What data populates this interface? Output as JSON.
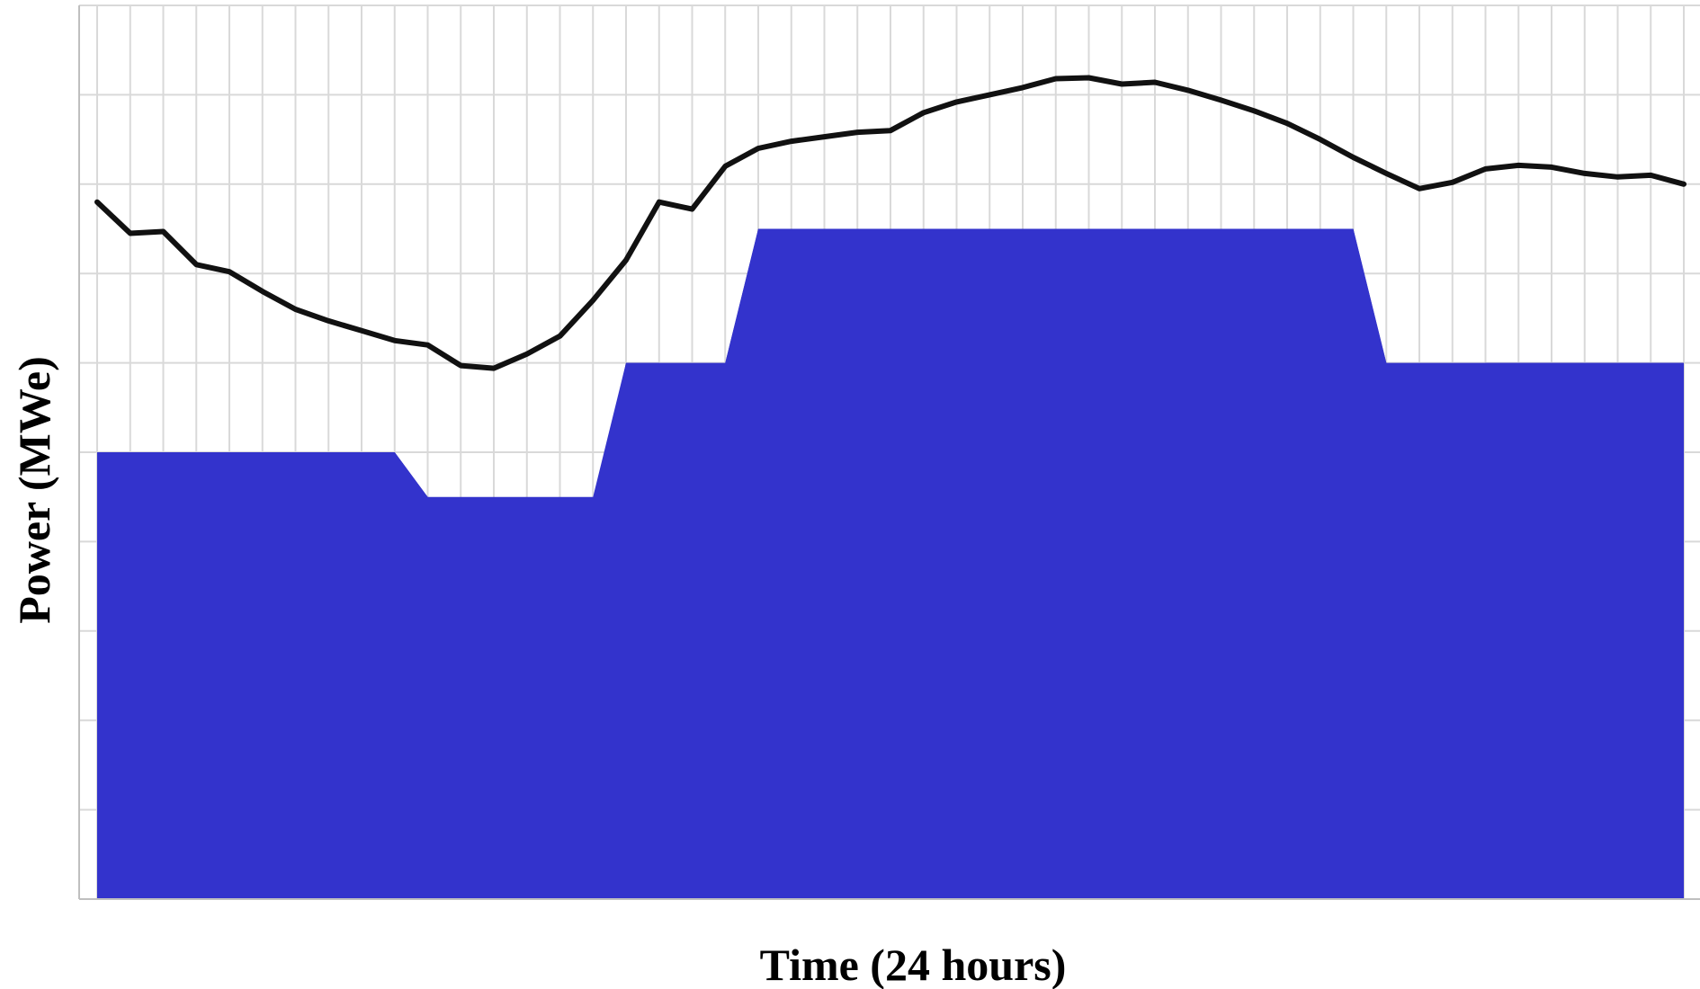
{
  "chart_data": {
    "type": "area",
    "title": "",
    "xlabel": "Time (24 hours)",
    "ylabel": "Power (MWe)",
    "xlim": [
      0,
      48
    ],
    "ylim": [
      0,
      10
    ],
    "grid": true,
    "colors": {
      "area": "#3333cc",
      "area_dip": "#2a2aa8",
      "line": "#111111",
      "grid": "#d9d9d9"
    },
    "area_series": {
      "x": [
        0,
        9,
        10,
        15,
        16,
        19,
        20,
        38,
        39,
        48
      ],
      "values": [
        5,
        5,
        4.5,
        4.5,
        6,
        6,
        7.5,
        7.5,
        6,
        6
      ]
    },
    "dip_series": {
      "x": [
        0,
        1,
        2,
        9,
        10,
        11,
        12,
        13,
        14,
        15,
        15.5,
        16,
        17,
        18,
        19,
        20,
        38,
        39,
        40,
        41,
        42,
        48
      ],
      "values": [
        5,
        4.9,
        5,
        5,
        4.5,
        4.3,
        4.2,
        4.2,
        4.2,
        4.2,
        5.2,
        6,
        6,
        5.8,
        6,
        7.5,
        7.5,
        6,
        5.9,
        5.9,
        6,
        6
      ]
    },
    "line_series": {
      "x": [
        0,
        1,
        2,
        3,
        4,
        5,
        6,
        7,
        8,
        9,
        10,
        11,
        12,
        13,
        14,
        15,
        16,
        17,
        18,
        19,
        20,
        21,
        22,
        23,
        24,
        25,
        26,
        27,
        28,
        29,
        30,
        31,
        32,
        33,
        34,
        35,
        36,
        37,
        38,
        39,
        40,
        41,
        42,
        43,
        44,
        45,
        46,
        47,
        48
      ],
      "values": [
        7.8,
        7.45,
        7.47,
        7.1,
        7.02,
        6.8,
        6.6,
        6.47,
        6.36,
        6.25,
        6.2,
        5.97,
        5.94,
        6.1,
        6.3,
        6.7,
        7.15,
        7.8,
        7.72,
        8.2,
        8.4,
        8.48,
        8.53,
        8.58,
        8.6,
        8.8,
        8.92,
        9.0,
        9.08,
        9.18,
        9.19,
        9.12,
        9.14,
        9.05,
        8.94,
        8.82,
        8.68,
        8.5,
        8.3,
        8.12,
        7.95,
        8.02,
        8.17,
        8.21,
        8.19,
        8.12,
        8.08,
        8.1,
        8.0
      ]
    }
  }
}
